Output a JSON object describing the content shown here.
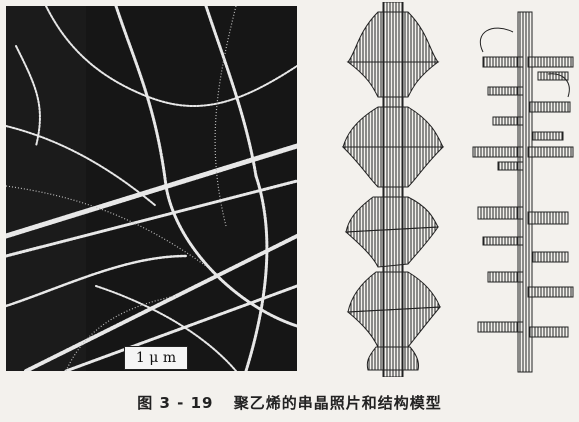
{
  "figure": {
    "label": "图 3 - 19",
    "caption": "聚乙烯的串晶照片和结构模型",
    "scale_bar": "1 μ m"
  }
}
